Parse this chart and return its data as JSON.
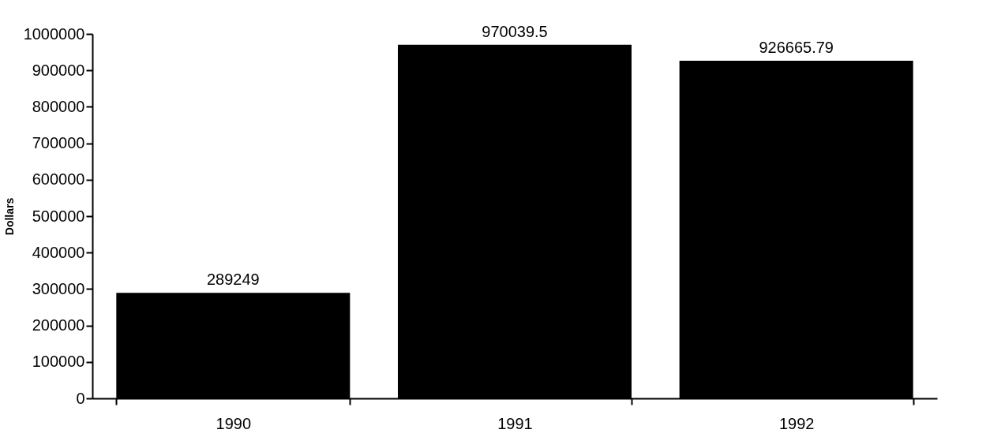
{
  "chart_data": {
    "type": "bar",
    "ylabel": "Dollars",
    "categories": [
      "1990",
      "1991",
      "1992"
    ],
    "values": [
      289249,
      970039.5,
      926665.79
    ],
    "color": "#000000",
    "ylim": [
      0,
      1000000
    ],
    "yticks": [
      0,
      100000,
      200000,
      300000,
      400000,
      500000,
      600000,
      700000,
      800000,
      900000,
      1000000
    ],
    "grid": false,
    "data_labels": true
  }
}
